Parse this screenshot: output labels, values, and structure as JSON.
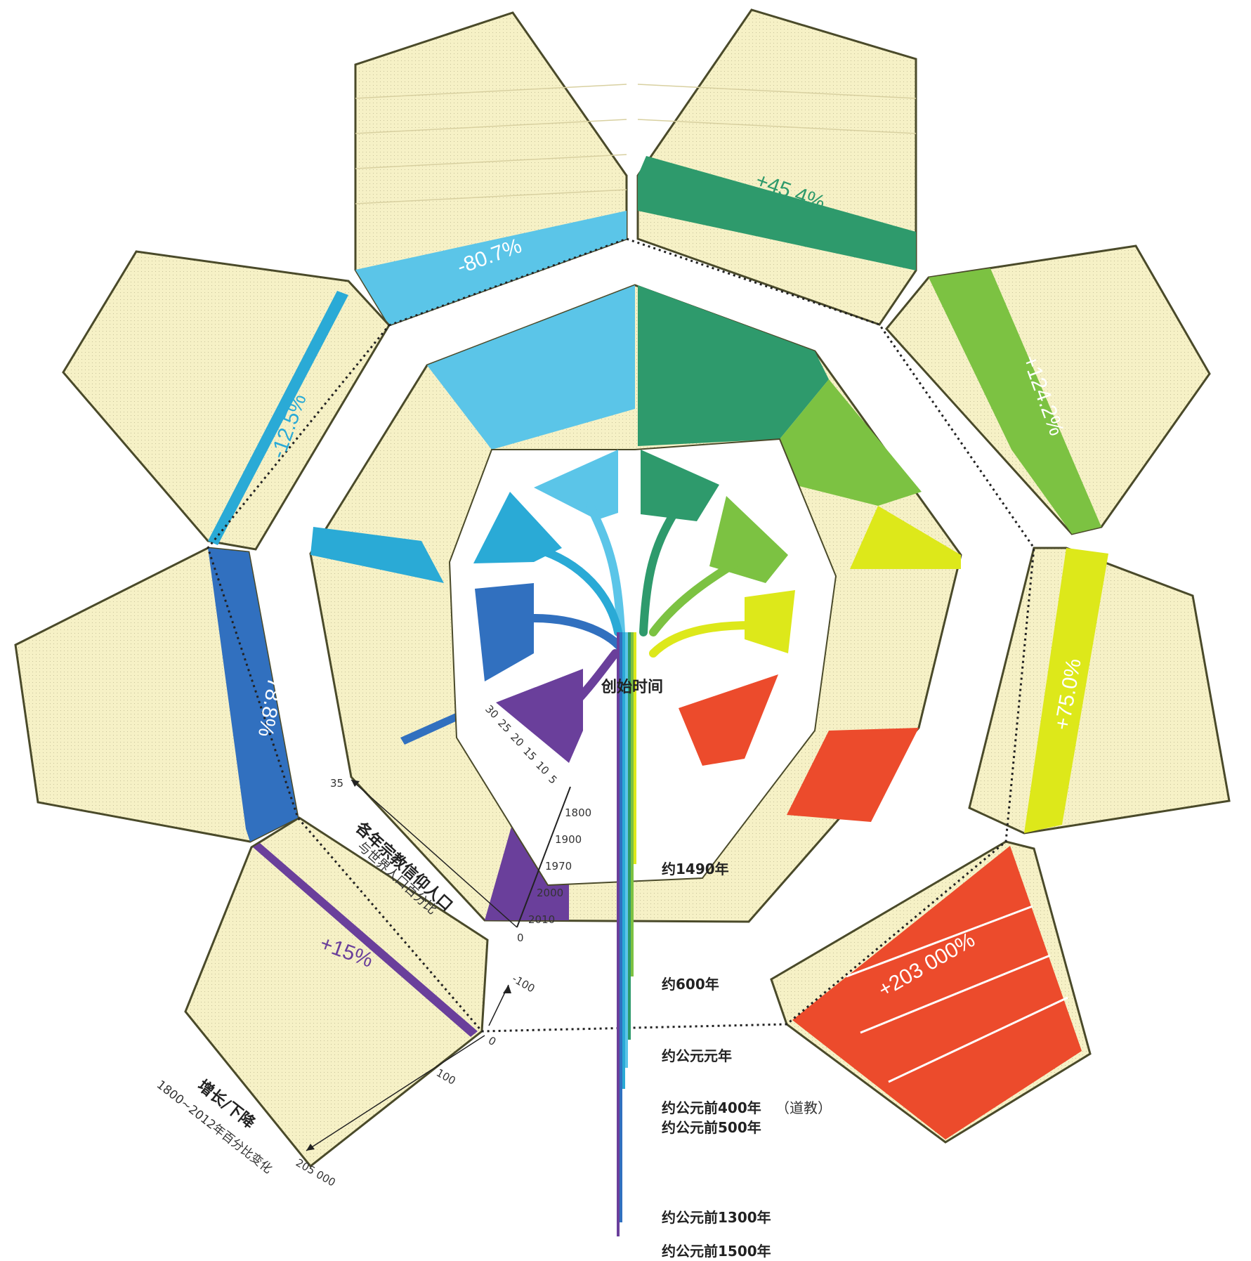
{
  "chart_data": [
    {
      "type": "radial-bar",
      "label_main": "各年宗教信仰人口",
      "label_sub": "与世界人口百分比",
      "categories": [
        "1800",
        "1900",
        "1970",
        "2000",
        "2010"
      ],
      "axis_ticks": [
        "35",
        "30",
        "25",
        "20",
        "15",
        "10",
        "5",
        "0"
      ],
      "series": [
        {
          "color": "#2e9a6c",
          "values": [
            22,
            30,
            33,
            33,
            33
          ]
        },
        {
          "color": "#7cc242",
          "values": [
            8,
            12,
            16,
            20,
            22
          ]
        },
        {
          "color": "#dde81a",
          "values": [
            1,
            1,
            1,
            1,
            1
          ]
        },
        {
          "color": "#ec4b2c",
          "values": [
            0,
            3,
            8,
            10,
            12
          ]
        },
        {
          "color": "#ffffff",
          "values": [
            6,
            5,
            4,
            3,
            3
          ]
        },
        {
          "color": "#6a3f9b",
          "values": [
            2,
            3,
            4,
            5,
            6
          ]
        },
        {
          "color": "#3170bf",
          "values": [
            1,
            1,
            1,
            1,
            1
          ]
        },
        {
          "color": "#2aaad6",
          "values": [
            5,
            4,
            4,
            3,
            3
          ]
        },
        {
          "color": "#5bc5e8",
          "values": [
            18,
            14,
            8,
            6,
            6
          ]
        }
      ]
    },
    {
      "type": "radial-bar",
      "label_main": "增长/下降",
      "label_sub": "1800~2012年百分比变化",
      "axis_ticks": [
        "-100",
        "0",
        "100",
        "205 000"
      ],
      "series": [
        {
          "color": "#2e9a6c",
          "value": "+45.4%"
        },
        {
          "color": "#7cc242",
          "value": "+124.2%"
        },
        {
          "color": "#dde81a",
          "value": "+75.0%"
        },
        {
          "color": "#ec4b2c",
          "value": "+203 000%"
        },
        {
          "color": "#6a3f9b",
          "value": "+15%"
        },
        {
          "color": "#3170bf",
          "value": "-78.8%"
        },
        {
          "color": "#2aaad6",
          "value": "-12.5%"
        },
        {
          "color": "#5bc5e8",
          "value": "-80.7%"
        }
      ]
    },
    {
      "type": "timeline",
      "title": "创始时间",
      "labels": [
        "约1490年",
        "约600年",
        "约公元元年",
        "约公元前400年",
        "（道教）",
        "约公元前500年",
        "约公元前1300年",
        "约公元前1500年"
      ]
    }
  ]
}
